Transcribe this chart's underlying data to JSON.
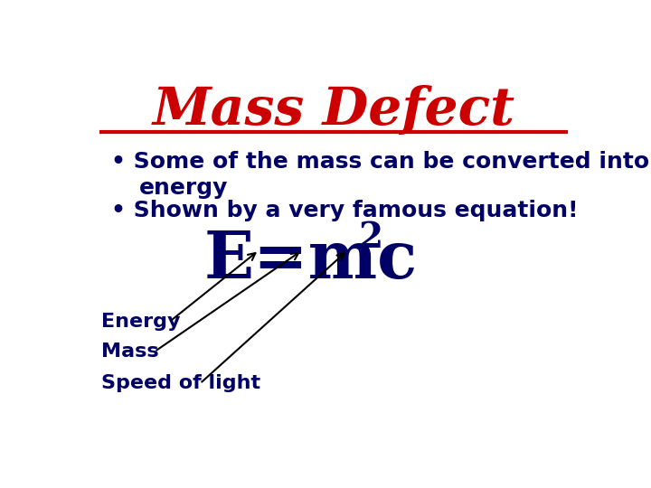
{
  "title": "Mass Defect",
  "title_color": "#CC0000",
  "title_fontsize": 42,
  "line_color": "#CC0000",
  "bullet1_line1": "Some of the mass can be converted into",
  "bullet1_line2": "energy",
  "bullet2": "Shown by a very famous equation!",
  "bullet_color": "#000066",
  "bullet_fontsize": 18,
  "equation": "E=mc",
  "equation_superscript": "2",
  "equation_color": "#000066",
  "equation_fontsize": 52,
  "label_energy": "Energy",
  "label_mass": "Mass",
  "label_speed": "Speed of light",
  "label_color": "#000066",
  "label_fontsize": 16,
  "arrow_color": "#000000",
  "bg_color": "#ffffff"
}
